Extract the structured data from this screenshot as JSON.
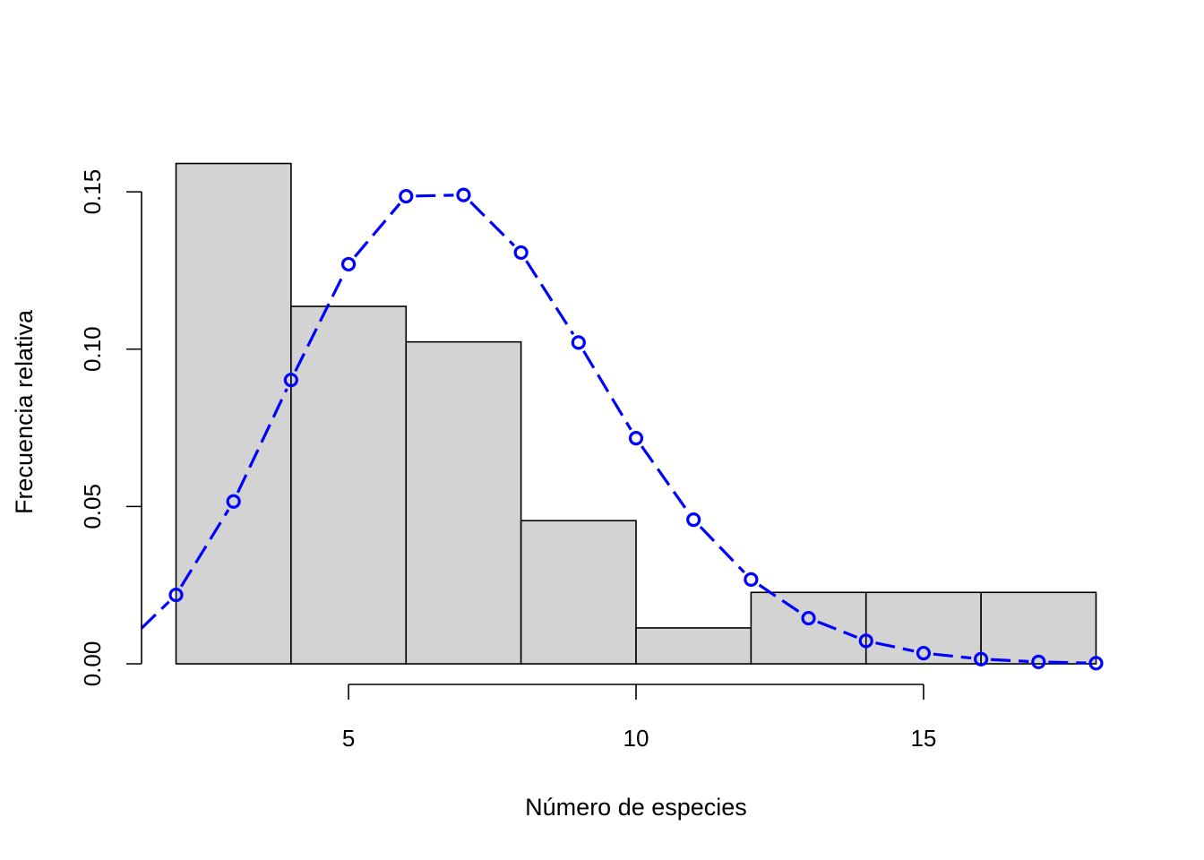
{
  "chart_data": {
    "type": "bar",
    "xlabel": "Número de especies",
    "ylabel": "Frecuencia relativa",
    "xlim": [
      1.4,
      18.6
    ],
    "ylim": [
      0,
      0.16
    ],
    "x_ticks": [
      5,
      10,
      15
    ],
    "y_ticks": [
      "0.00",
      "0.05",
      "0.10",
      "0.15"
    ],
    "bar_color": "#d3d3d3",
    "bins": [
      {
        "x0": 2,
        "x1": 4,
        "value": 0.159
      },
      {
        "x0": 4,
        "x1": 6,
        "value": 0.1136
      },
      {
        "x0": 6,
        "x1": 8,
        "value": 0.1023
      },
      {
        "x0": 8,
        "x1": 10,
        "value": 0.0455
      },
      {
        "x0": 10,
        "x1": 12,
        "value": 0.0114
      },
      {
        "x0": 12,
        "x1": 14,
        "value": 0.0227
      },
      {
        "x0": 14,
        "x1": 16,
        "value": 0.0227
      },
      {
        "x0": 16,
        "x1": 18,
        "value": 0.0227
      }
    ],
    "curve": {
      "color": "#0000ff",
      "style": "dashed line with open circles",
      "x": [
        2,
        3,
        4,
        5,
        6,
        7,
        8,
        9,
        10,
        11,
        12,
        13,
        14,
        15,
        16,
        17,
        18
      ],
      "y": [
        0.0219,
        0.0516,
        0.0902,
        0.127,
        0.1486,
        0.149,
        0.1307,
        0.1021,
        0.0717,
        0.0458,
        0.0268,
        0.0145,
        0.0073,
        0.0034,
        0.0015,
        0.0006,
        0.0002
      ],
      "start": {
        "x": 1.4,
        "y": 0.0113
      }
    }
  }
}
